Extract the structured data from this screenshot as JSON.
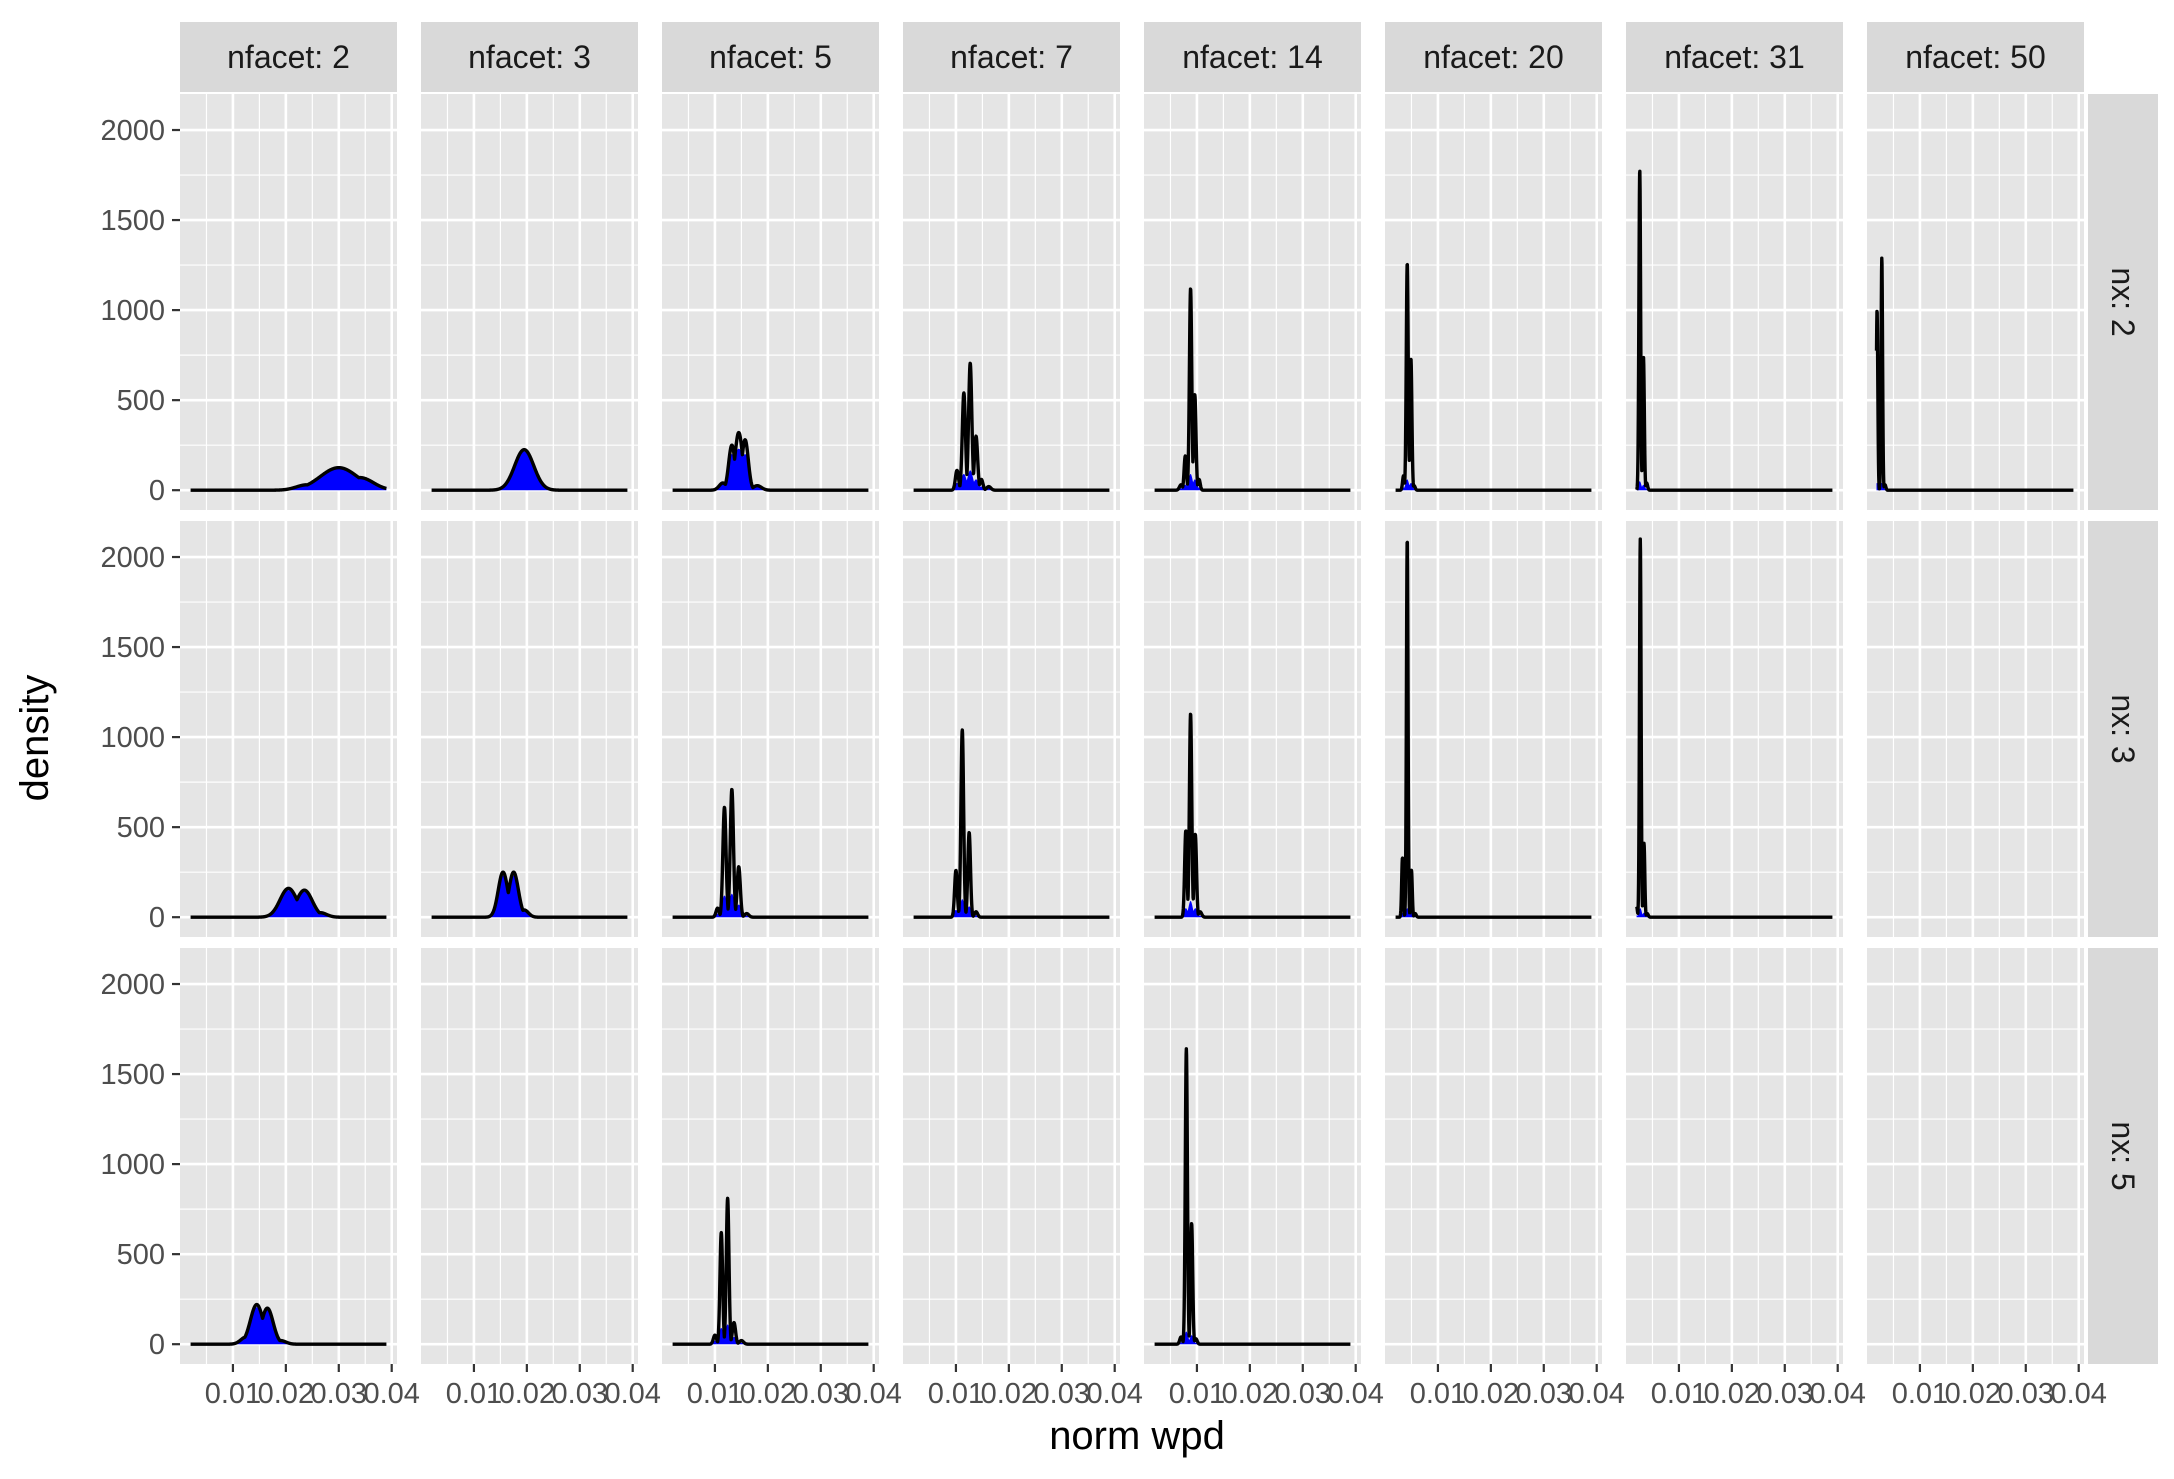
{
  "chart_data": {
    "type": "area",
    "title": "",
    "xlabel": "norm wpd",
    "ylabel": "density",
    "xlim": [
      0.0,
      0.041
    ],
    "ylim": [
      -110,
      2200
    ],
    "x_ticks": [
      0.01,
      0.02,
      0.03,
      0.04
    ],
    "x_tick_labels": [
      "0.01",
      "0.02",
      "0.03",
      "0.04"
    ],
    "y_ticks": [
      0,
      500,
      1000,
      1500,
      2000
    ],
    "y_tick_labels": [
      "0",
      "500",
      "1000",
      "1500",
      "2000"
    ],
    "column_facet_labels": [
      "nfacet: 2",
      "nfacet: 3",
      "nfacet: 5",
      "nfacet: 7",
      "nfacet: 14",
      "nfacet: 20",
      "nfacet: 31",
      "nfacet: 50"
    ],
    "row_facet_labels": [
      "nx: 2",
      "nx: 3",
      "nx: 5"
    ],
    "colors": {
      "fill": "#0000ff",
      "line": "#000000",
      "panel": "#e5e5e5",
      "strip": "#d9d9d9",
      "grid": "#ffffff"
    },
    "panels": [
      {
        "row": 0,
        "col": 0,
        "x_range": [
          0.002,
          0.039
        ],
        "peaks": [
          {
            "x": 0.03,
            "peak": 125,
            "width": 0.0035,
            "fill": 120
          },
          {
            "x": 0.034,
            "peak": 70,
            "width": 0.0025,
            "fill": 65
          },
          {
            "x": 0.024,
            "peak": 30,
            "width": 0.002,
            "fill": 28
          }
        ]
      },
      {
        "row": 0,
        "col": 1,
        "x_range": [
          0.002,
          0.039
        ],
        "peaks": [
          {
            "x": 0.0195,
            "peak": 225,
            "width": 0.0018,
            "fill": 215
          },
          {
            "x": 0.0175,
            "peak": 70,
            "width": 0.0012,
            "fill": 65
          },
          {
            "x": 0.022,
            "peak": 30,
            "width": 0.0012,
            "fill": 28
          }
        ]
      },
      {
        "row": 0,
        "col": 2,
        "x_range": [
          0.002,
          0.039
        ],
        "peaks": [
          {
            "x": 0.0145,
            "peak": 320,
            "width": 0.0007,
            "fill": 230
          },
          {
            "x": 0.0132,
            "peak": 250,
            "width": 0.0006,
            "fill": 200
          },
          {
            "x": 0.0157,
            "peak": 280,
            "width": 0.0006,
            "fill": 200
          },
          {
            "x": 0.0115,
            "peak": 40,
            "width": 0.0007,
            "fill": 35
          },
          {
            "x": 0.018,
            "peak": 25,
            "width": 0.0008,
            "fill": 20
          }
        ]
      },
      {
        "row": 0,
        "col": 3,
        "x_range": [
          0.002,
          0.039
        ],
        "peaks": [
          {
            "x": 0.0115,
            "peak": 540,
            "width": 0.0003,
            "fill": 90
          },
          {
            "x": 0.0127,
            "peak": 705,
            "width": 0.0003,
            "fill": 110
          },
          {
            "x": 0.0102,
            "peak": 110,
            "width": 0.0003,
            "fill": 40
          },
          {
            "x": 0.0138,
            "peak": 300,
            "width": 0.0003,
            "fill": 60
          },
          {
            "x": 0.0148,
            "peak": 60,
            "width": 0.0003,
            "fill": 20
          },
          {
            "x": 0.0162,
            "peak": 20,
            "width": 0.0004,
            "fill": 10
          }
        ]
      },
      {
        "row": 0,
        "col": 4,
        "x_range": [
          0.002,
          0.039
        ],
        "peaks": [
          {
            "x": 0.0088,
            "peak": 1120,
            "width": 0.00022,
            "fill": 90
          },
          {
            "x": 0.0096,
            "peak": 530,
            "width": 0.00022,
            "fill": 60
          },
          {
            "x": 0.0078,
            "peak": 190,
            "width": 0.00022,
            "fill": 30
          },
          {
            "x": 0.0104,
            "peak": 60,
            "width": 0.00022,
            "fill": 15
          },
          {
            "x": 0.007,
            "peak": 30,
            "width": 0.0003,
            "fill": 10
          }
        ]
      },
      {
        "row": 0,
        "col": 5,
        "x_range": [
          0.002,
          0.039
        ],
        "peaks": [
          {
            "x": 0.0042,
            "peak": 1260,
            "width": 0.00018,
            "fill": 60
          },
          {
            "x": 0.0049,
            "peak": 730,
            "width": 0.00018,
            "fill": 40
          },
          {
            "x": 0.0035,
            "peak": 80,
            "width": 0.00018,
            "fill": 15
          },
          {
            "x": 0.0055,
            "peak": 25,
            "width": 0.0002,
            "fill": 8
          }
        ]
      },
      {
        "row": 0,
        "col": 6,
        "x_range": [
          0.002,
          0.039
        ],
        "peaks": [
          {
            "x": 0.0026,
            "peak": 1780,
            "width": 0.00016,
            "fill": 50
          },
          {
            "x": 0.0033,
            "peak": 740,
            "width": 0.00016,
            "fill": 30
          },
          {
            "x": 0.0039,
            "peak": 40,
            "width": 0.00018,
            "fill": 8
          }
        ]
      },
      {
        "row": 0,
        "col": 7,
        "x_range": [
          0.0018,
          0.039
        ],
        "peaks": [
          {
            "x": 0.0019,
            "peak": 1000,
            "width": 0.00014,
            "fill": 40
          },
          {
            "x": 0.0028,
            "peak": 1290,
            "width": 0.00014,
            "fill": 40
          },
          {
            "x": 0.0034,
            "peak": 30,
            "width": 0.00016,
            "fill": 8
          }
        ]
      },
      {
        "row": 1,
        "col": 0,
        "x_range": [
          0.002,
          0.039
        ],
        "peaks": [
          {
            "x": 0.0205,
            "peak": 160,
            "width": 0.0016,
            "fill": 150
          },
          {
            "x": 0.0235,
            "peak": 150,
            "width": 0.0015,
            "fill": 140
          },
          {
            "x": 0.0265,
            "peak": 25,
            "width": 0.0012,
            "fill": 22
          }
        ]
      },
      {
        "row": 1,
        "col": 1,
        "x_range": [
          0.002,
          0.039
        ],
        "peaks": [
          {
            "x": 0.0155,
            "peak": 250,
            "width": 0.0009,
            "fill": 230
          },
          {
            "x": 0.0175,
            "peak": 250,
            "width": 0.0009,
            "fill": 230
          },
          {
            "x": 0.0195,
            "peak": 40,
            "width": 0.0008,
            "fill": 35
          }
        ]
      },
      {
        "row": 1,
        "col": 2,
        "x_range": [
          0.002,
          0.039
        ],
        "peaks": [
          {
            "x": 0.0118,
            "peak": 610,
            "width": 0.0003,
            "fill": 120
          },
          {
            "x": 0.0132,
            "peak": 710,
            "width": 0.0003,
            "fill": 130
          },
          {
            "x": 0.0145,
            "peak": 280,
            "width": 0.0003,
            "fill": 70
          },
          {
            "x": 0.0105,
            "peak": 50,
            "width": 0.0003,
            "fill": 20
          },
          {
            "x": 0.016,
            "peak": 20,
            "width": 0.0004,
            "fill": 8
          }
        ]
      },
      {
        "row": 1,
        "col": 3,
        "x_range": [
          0.002,
          0.039
        ],
        "peaks": [
          {
            "x": 0.0112,
            "peak": 1040,
            "width": 0.00025,
            "fill": 100
          },
          {
            "x": 0.01,
            "peak": 260,
            "width": 0.00025,
            "fill": 40
          },
          {
            "x": 0.0125,
            "peak": 470,
            "width": 0.00025,
            "fill": 60
          },
          {
            "x": 0.0138,
            "peak": 30,
            "width": 0.0003,
            "fill": 10
          }
        ]
      },
      {
        "row": 1,
        "col": 4,
        "x_range": [
          0.002,
          0.039
        ],
        "peaks": [
          {
            "x": 0.0088,
            "peak": 1130,
            "width": 0.00022,
            "fill": 90
          },
          {
            "x": 0.0079,
            "peak": 480,
            "width": 0.00022,
            "fill": 50
          },
          {
            "x": 0.0097,
            "peak": 460,
            "width": 0.00022,
            "fill": 50
          },
          {
            "x": 0.0106,
            "peak": 30,
            "width": 0.0003,
            "fill": 8
          }
        ]
      },
      {
        "row": 1,
        "col": 5,
        "x_range": [
          0.002,
          0.039
        ],
        "peaks": [
          {
            "x": 0.0042,
            "peak": 2100,
            "width": 0.00015,
            "fill": 50
          },
          {
            "x": 0.0033,
            "peak": 330,
            "width": 0.00015,
            "fill": 25
          },
          {
            "x": 0.005,
            "peak": 260,
            "width": 0.00015,
            "fill": 25
          },
          {
            "x": 0.0057,
            "peak": 20,
            "width": 0.0002,
            "fill": 6
          }
        ]
      },
      {
        "row": 1,
        "col": 6,
        "x_range": [
          0.002,
          0.039
        ],
        "peaks": [
          {
            "x": 0.0027,
            "peak": 2100,
            "width": 0.00015,
            "fill": 50
          },
          {
            "x": 0.0034,
            "peak": 410,
            "width": 0.00015,
            "fill": 25
          },
          {
            "x": 0.002,
            "peak": 60,
            "width": 0.00015,
            "fill": 10
          },
          {
            "x": 0.004,
            "peak": 20,
            "width": 0.0002,
            "fill": 6
          }
        ]
      },
      {
        "row": 2,
        "col": 0,
        "x_range": [
          0.002,
          0.039
        ],
        "peaks": [
          {
            "x": 0.0145,
            "peak": 220,
            "width": 0.0012,
            "fill": 205
          },
          {
            "x": 0.0165,
            "peak": 200,
            "width": 0.0011,
            "fill": 190
          },
          {
            "x": 0.0125,
            "peak": 40,
            "width": 0.001,
            "fill": 35
          },
          {
            "x": 0.019,
            "peak": 20,
            "width": 0.001,
            "fill": 18
          }
        ]
      },
      {
        "row": 2,
        "col": 2,
        "x_range": [
          0.002,
          0.039
        ],
        "peaks": [
          {
            "x": 0.0112,
            "peak": 620,
            "width": 0.00025,
            "fill": 90
          },
          {
            "x": 0.0124,
            "peak": 810,
            "width": 0.00025,
            "fill": 110
          },
          {
            "x": 0.01,
            "peak": 50,
            "width": 0.0003,
            "fill": 20
          },
          {
            "x": 0.0136,
            "peak": 120,
            "width": 0.0003,
            "fill": 40
          },
          {
            "x": 0.015,
            "peak": 20,
            "width": 0.0004,
            "fill": 8
          }
        ]
      },
      {
        "row": 2,
        "col": 4,
        "x_range": [
          0.002,
          0.039
        ],
        "peaks": [
          {
            "x": 0.008,
            "peak": 1640,
            "width": 0.0002,
            "fill": 70
          },
          {
            "x": 0.009,
            "peak": 670,
            "width": 0.0002,
            "fill": 50
          },
          {
            "x": 0.007,
            "peak": 40,
            "width": 0.00025,
            "fill": 10
          },
          {
            "x": 0.0098,
            "peak": 30,
            "width": 0.00025,
            "fill": 8
          }
        ]
      }
    ]
  }
}
